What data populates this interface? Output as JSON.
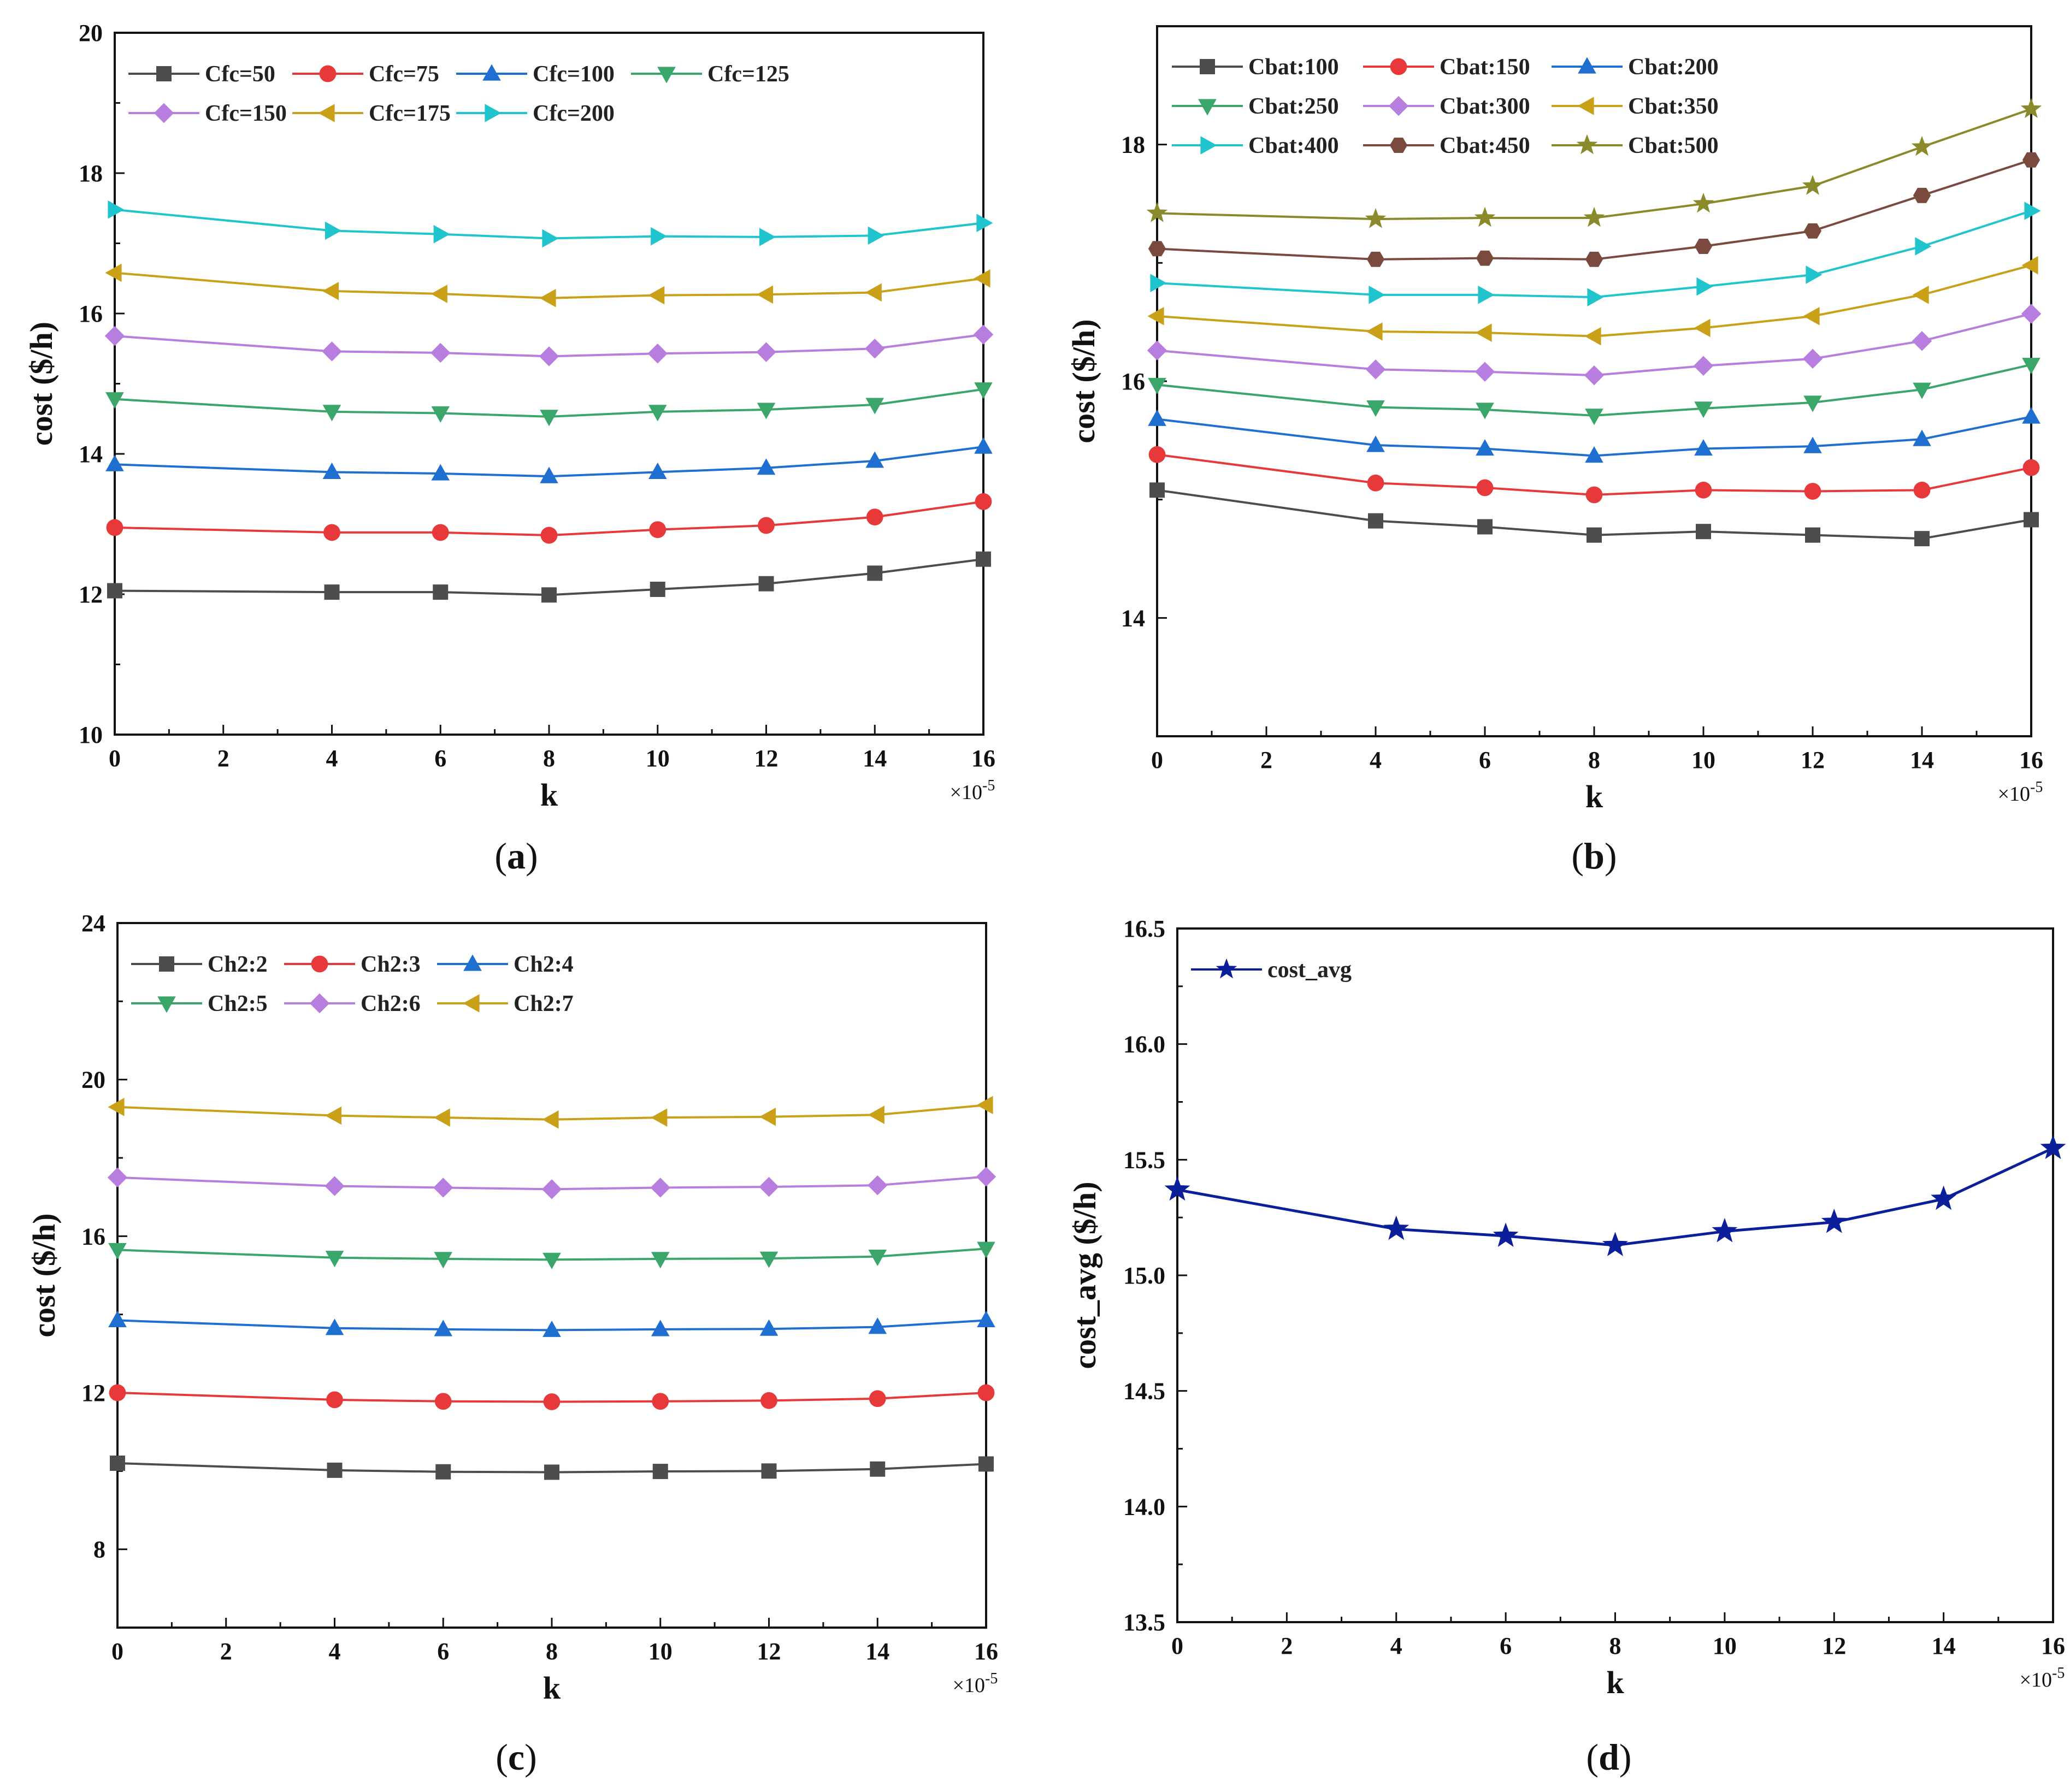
{
  "chart_data": [
    {
      "id": "a",
      "type": "line",
      "caption_letter": "a",
      "xlabel": "k",
      "ylabel": "cost ($/h)",
      "x_multiplier": {
        "base": "×10",
        "exp": "-5"
      },
      "x": [
        0,
        4,
        6,
        8,
        10,
        12,
        14,
        16
      ],
      "xticks": [
        0,
        2,
        4,
        6,
        8,
        10,
        12,
        14,
        16
      ],
      "xlim": [
        0,
        16
      ],
      "ylim": [
        10,
        20
      ],
      "yticks": [
        10,
        12,
        14,
        16,
        18,
        20
      ],
      "ytick_labels": [
        "10",
        "12",
        "14",
        "16",
        "18",
        "20"
      ],
      "legend_rows": [
        [
          0,
          1,
          2,
          3
        ],
        [
          4,
          5,
          6
        ]
      ],
      "series": [
        {
          "name": "Cfc=50",
          "color": "#4d4d4d",
          "marker": "square",
          "values": [
            12.05,
            12.03,
            12.03,
            11.99,
            12.07,
            12.15,
            12.3,
            12.5
          ]
        },
        {
          "name": "Cfc=75",
          "color": "#e8393a",
          "marker": "circle",
          "values": [
            12.95,
            12.88,
            12.88,
            12.84,
            12.92,
            12.98,
            13.1,
            13.32
          ]
        },
        {
          "name": "Cfc=100",
          "color": "#1f6fd1",
          "marker": "triangle-up",
          "values": [
            13.85,
            13.74,
            13.72,
            13.68,
            13.74,
            13.8,
            13.9,
            14.1
          ]
        },
        {
          "name": "Cfc=125",
          "color": "#3aa66a",
          "marker": "triangle-down",
          "values": [
            14.78,
            14.6,
            14.58,
            14.53,
            14.6,
            14.63,
            14.7,
            14.92
          ]
        },
        {
          "name": "Cfc=150",
          "color": "#b77ee0",
          "marker": "diamond",
          "values": [
            15.68,
            15.46,
            15.44,
            15.39,
            15.43,
            15.45,
            15.5,
            15.7
          ]
        },
        {
          "name": "Cfc=175",
          "color": "#c9a018",
          "marker": "triangle-left",
          "values": [
            16.58,
            16.32,
            16.28,
            16.22,
            16.26,
            16.27,
            16.3,
            16.5
          ]
        },
        {
          "name": "Cfc=200",
          "color": "#20c4cc",
          "marker": "triangle-right",
          "values": [
            17.48,
            17.18,
            17.13,
            17.07,
            17.1,
            17.09,
            17.11,
            17.29
          ]
        }
      ]
    },
    {
      "id": "b",
      "type": "line",
      "caption_letter": "b",
      "xlabel": "k",
      "ylabel": "cost ($/h)",
      "x_multiplier": {
        "base": "×10",
        "exp": "-5"
      },
      "x": [
        0,
        4,
        6,
        8,
        10,
        12,
        14,
        16
      ],
      "xticks": [
        0,
        2,
        4,
        6,
        8,
        10,
        12,
        14,
        16
      ],
      "xlim": [
        0,
        16
      ],
      "ylim": [
        13,
        19
      ],
      "yticks": [
        14,
        16,
        18
      ],
      "ytick_labels": [
        "14",
        "16",
        "18"
      ],
      "legend_rows": [
        [
          0,
          1,
          2
        ],
        [
          3,
          4,
          5
        ],
        [
          6,
          7,
          8
        ]
      ],
      "series": [
        {
          "name": "Cbat:100",
          "color": "#4d4d4d",
          "marker": "square",
          "values": [
            15.08,
            14.82,
            14.77,
            14.7,
            14.73,
            14.7,
            14.67,
            14.83
          ]
        },
        {
          "name": "Cbat:150",
          "color": "#e8393a",
          "marker": "circle",
          "values": [
            15.38,
            15.14,
            15.1,
            15.04,
            15.08,
            15.07,
            15.08,
            15.27
          ]
        },
        {
          "name": "Cbat:200",
          "color": "#1f6fd1",
          "marker": "triangle-up",
          "values": [
            15.68,
            15.46,
            15.43,
            15.37,
            15.43,
            15.45,
            15.51,
            15.7
          ]
        },
        {
          "name": "Cbat:250",
          "color": "#3aa66a",
          "marker": "triangle-down",
          "values": [
            15.97,
            15.78,
            15.76,
            15.71,
            15.77,
            15.82,
            15.93,
            16.14
          ]
        },
        {
          "name": "Cbat:300",
          "color": "#b77ee0",
          "marker": "diamond",
          "values": [
            16.26,
            16.1,
            16.08,
            16.05,
            16.13,
            16.19,
            16.34,
            16.57
          ]
        },
        {
          "name": "Cbat:350",
          "color": "#c9a018",
          "marker": "triangle-left",
          "values": [
            16.55,
            16.42,
            16.41,
            16.38,
            16.45,
            16.55,
            16.73,
            16.98
          ]
        },
        {
          "name": "Cbat:400",
          "color": "#20c4cc",
          "marker": "triangle-right",
          "values": [
            16.83,
            16.73,
            16.73,
            16.71,
            16.8,
            16.9,
            17.14,
            17.44
          ]
        },
        {
          "name": "Cbat:450",
          "color": "#7b4a3e",
          "marker": "hexagon",
          "values": [
            17.12,
            17.03,
            17.04,
            17.03,
            17.14,
            17.27,
            17.57,
            17.87
          ]
        },
        {
          "name": "Cbat:500",
          "color": "#8a8a2a",
          "marker": "star",
          "values": [
            17.42,
            17.37,
            17.38,
            17.38,
            17.5,
            17.65,
            17.98,
            18.3
          ]
        }
      ]
    },
    {
      "id": "c",
      "type": "line",
      "caption_letter": "c",
      "xlabel": "k",
      "ylabel": "cost ($/h)",
      "x_multiplier": {
        "base": "×10",
        "exp": "-5"
      },
      "x": [
        0,
        4,
        6,
        8,
        10,
        12,
        14,
        16
      ],
      "xticks": [
        0,
        2,
        4,
        6,
        8,
        10,
        12,
        14,
        16
      ],
      "xlim": [
        0,
        16
      ],
      "ylim": [
        6,
        24
      ],
      "yticks": [
        8,
        12,
        16,
        20,
        24
      ],
      "ytick_labels": [
        "8",
        "12",
        "16",
        "20",
        "24"
      ],
      "legend_rows": [
        [
          0,
          1,
          2
        ],
        [
          3,
          4,
          5
        ]
      ],
      "series": [
        {
          "name": "Ch2:2",
          "color": "#4d4d4d",
          "marker": "square",
          "values": [
            10.2,
            10.02,
            9.98,
            9.97,
            9.99,
            10.0,
            10.05,
            10.18
          ]
        },
        {
          "name": "Ch2:3",
          "color": "#e8393a",
          "marker": "circle",
          "values": [
            12.0,
            11.82,
            11.78,
            11.77,
            11.78,
            11.8,
            11.85,
            12.0
          ]
        },
        {
          "name": "Ch2:4",
          "color": "#1f6fd1",
          "marker": "triangle-up",
          "values": [
            13.85,
            13.65,
            13.62,
            13.6,
            13.62,
            13.63,
            13.68,
            13.85
          ]
        },
        {
          "name": "Ch2:5",
          "color": "#3aa66a",
          "marker": "triangle-down",
          "values": [
            15.65,
            15.45,
            15.42,
            15.4,
            15.42,
            15.43,
            15.48,
            15.68
          ]
        },
        {
          "name": "Ch2:6",
          "color": "#b77ee0",
          "marker": "diamond",
          "values": [
            17.5,
            17.28,
            17.24,
            17.2,
            17.24,
            17.26,
            17.3,
            17.52
          ]
        },
        {
          "name": "Ch2:7",
          "color": "#c9a018",
          "marker": "triangle-left",
          "values": [
            19.3,
            19.08,
            19.03,
            18.98,
            19.03,
            19.05,
            19.1,
            19.35
          ]
        }
      ]
    },
    {
      "id": "d",
      "type": "line",
      "caption_letter": "d",
      "xlabel": "k",
      "ylabel": "cost_avg ($/h)",
      "x_multiplier": {
        "base": "×10",
        "exp": "-5"
      },
      "x": [
        0,
        4,
        6,
        8,
        10,
        12,
        14,
        16
      ],
      "xticks": [
        0,
        2,
        4,
        6,
        8,
        10,
        12,
        14,
        16
      ],
      "xlim": [
        0,
        16
      ],
      "ylim": [
        13.5,
        16.5
      ],
      "yticks": [
        13.5,
        14.0,
        14.5,
        15.0,
        15.5,
        16.0,
        16.5
      ],
      "ytick_labels": [
        "13.5",
        "14.0",
        "14.5",
        "15.0",
        "15.5",
        "16.0",
        "16.5"
      ],
      "legend_rows": [
        [
          0
        ]
      ],
      "series": [
        {
          "name": "cost_avg",
          "color": "#0b1f9a",
          "marker": "star",
          "values": [
            15.37,
            15.2,
            15.17,
            15.13,
            15.19,
            15.23,
            15.33,
            15.55
          ]
        }
      ]
    }
  ]
}
